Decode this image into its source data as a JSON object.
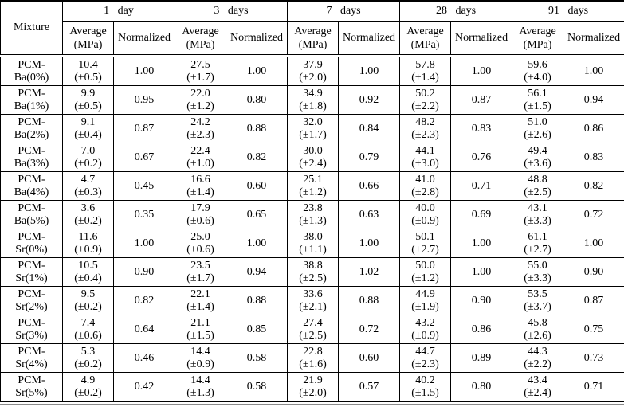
{
  "table": {
    "corner_header": "Mixture",
    "periods": [
      {
        "label": "1 day"
      },
      {
        "label": "3 days"
      },
      {
        "label": "7 days"
      },
      {
        "label": "28 days"
      },
      {
        "label": "91 days"
      }
    ],
    "sub_headers": {
      "average_line1": "Average",
      "average_line2": "(MPa)",
      "normalized": "Normalized"
    },
    "border_color": "#000000",
    "background_color": "#ffffff"
  },
  "rows": [
    {
      "mixture_line1": "PCM-",
      "mixture_line2": "Ba(0%)",
      "periods": [
        {
          "avg": "10.4",
          "err": "(±0.5)",
          "norm": "1.00"
        },
        {
          "avg": "27.5",
          "err": "(±1.7)",
          "norm": "1.00"
        },
        {
          "avg": "37.9",
          "err": "(±2.0)",
          "norm": "1.00"
        },
        {
          "avg": "57.8",
          "err": "(±1.4)",
          "norm": "1.00"
        },
        {
          "avg": "59.6",
          "err": "(±4.0)",
          "norm": "1.00"
        }
      ]
    },
    {
      "mixture_line1": "PCM-",
      "mixture_line2": "Ba(1%)",
      "periods": [
        {
          "avg": "9.9",
          "err": "(±0.5)",
          "norm": "0.95"
        },
        {
          "avg": "22.0",
          "err": "(±1.2)",
          "norm": "0.80"
        },
        {
          "avg": "34.9",
          "err": "(±1.8)",
          "norm": "0.92"
        },
        {
          "avg": "50.2",
          "err": "(±2.2)",
          "norm": "0.87"
        },
        {
          "avg": "56.1",
          "err": "(±1.5)",
          "norm": "0.94"
        }
      ]
    },
    {
      "mixture_line1": "PCM-",
      "mixture_line2": "Ba(2%)",
      "periods": [
        {
          "avg": "9.1",
          "err": "(±0.4)",
          "norm": "0.87"
        },
        {
          "avg": "24.2",
          "err": "(±2.3)",
          "norm": "0.88"
        },
        {
          "avg": "32.0",
          "err": "(±1.7)",
          "norm": "0.84"
        },
        {
          "avg": "48.2",
          "err": "(±2.3)",
          "norm": "0.83"
        },
        {
          "avg": "51.0",
          "err": "(±2.6)",
          "norm": "0.86"
        }
      ]
    },
    {
      "mixture_line1": "PCM-",
      "mixture_line2": "Ba(3%)",
      "periods": [
        {
          "avg": "7.0",
          "err": "(±0.2)",
          "norm": "0.67"
        },
        {
          "avg": "22.4",
          "err": "(±1.0)",
          "norm": "0.82"
        },
        {
          "avg": "30.0",
          "err": "(±2.4)",
          "norm": "0.79"
        },
        {
          "avg": "44.1",
          "err": "(±3.0)",
          "norm": "0.76"
        },
        {
          "avg": "49.4",
          "err": "(±3.6)",
          "norm": "0.83"
        }
      ]
    },
    {
      "mixture_line1": "PCM-",
      "mixture_line2": "Ba(4%)",
      "periods": [
        {
          "avg": "4.7",
          "err": "(±0.3)",
          "norm": "0.45"
        },
        {
          "avg": "16.6",
          "err": "(±1.4)",
          "norm": "0.60"
        },
        {
          "avg": "25.1",
          "err": "(±1.2)",
          "norm": "0.66"
        },
        {
          "avg": "41.0",
          "err": "(±2.8)",
          "norm": "0.71"
        },
        {
          "avg": "48.8",
          "err": "(±2.5)",
          "norm": "0.82"
        }
      ]
    },
    {
      "mixture_line1": "PCM-",
      "mixture_line2": "Ba(5%)",
      "periods": [
        {
          "avg": "3.6",
          "err": "(±0.2)",
          "norm": "0.35"
        },
        {
          "avg": "17.9",
          "err": "(±0.6)",
          "norm": "0.65"
        },
        {
          "avg": "23.8",
          "err": "(±1.3)",
          "norm": "0.63"
        },
        {
          "avg": "40.0",
          "err": "(±0.9)",
          "norm": "0.69"
        },
        {
          "avg": "43.1",
          "err": "(±3.3)",
          "norm": "0.72"
        }
      ]
    },
    {
      "mixture_line1": "PCM-",
      "mixture_line2": "Sr(0%)",
      "periods": [
        {
          "avg": "11.6",
          "err": "(±0.9)",
          "norm": "1.00"
        },
        {
          "avg": "25.0",
          "err": "(±0.6)",
          "norm": "1.00"
        },
        {
          "avg": "38.0",
          "err": "(±1.1)",
          "norm": "1.00"
        },
        {
          "avg": "50.1",
          "err": "(±2.7)",
          "norm": "1.00"
        },
        {
          "avg": "61.1",
          "err": "(±2.7)",
          "norm": "1.00"
        }
      ]
    },
    {
      "mixture_line1": "PCM-",
      "mixture_line2": "Sr(1%)",
      "periods": [
        {
          "avg": "10.5",
          "err": "(±0.4)",
          "norm": "0.90"
        },
        {
          "avg": "23.5",
          "err": "(±1.7)",
          "norm": "0.94"
        },
        {
          "avg": "38.8",
          "err": "(±2.5)",
          "norm": "1.02"
        },
        {
          "avg": "50.0",
          "err": "(±1.2)",
          "norm": "1.00"
        },
        {
          "avg": "55.0",
          "err": "(±3.3)",
          "norm": "0.90"
        }
      ]
    },
    {
      "mixture_line1": "PCM-",
      "mixture_line2": "Sr(2%)",
      "periods": [
        {
          "avg": "9.5",
          "err": "(±0.2)",
          "norm": "0.82"
        },
        {
          "avg": "22.1",
          "err": "(±1.4)",
          "norm": "0.88"
        },
        {
          "avg": "33.6",
          "err": "(±2.1)",
          "norm": "0.88"
        },
        {
          "avg": "44.9",
          "err": "(±1.9)",
          "norm": "0.90"
        },
        {
          "avg": "53.5",
          "err": "(±3.7)",
          "norm": "0.87"
        }
      ]
    },
    {
      "mixture_line1": "PCM-",
      "mixture_line2": "Sr(3%)",
      "periods": [
        {
          "avg": "7.4",
          "err": "(±0.6)",
          "norm": "0.64"
        },
        {
          "avg": "21.1",
          "err": "(±1.5)",
          "norm": "0.85"
        },
        {
          "avg": "27.4",
          "err": "(±2.5)",
          "norm": "0.72"
        },
        {
          "avg": "43.2",
          "err": "(±0.9)",
          "norm": "0.86"
        },
        {
          "avg": "45.8",
          "err": "(±2.6)",
          "norm": "0.75"
        }
      ]
    },
    {
      "mixture_line1": "PCM-",
      "mixture_line2": "Sr(4%)",
      "periods": [
        {
          "avg": "5.3",
          "err": "(±0.2)",
          "norm": "0.46"
        },
        {
          "avg": "14.4",
          "err": "(±0.9)",
          "norm": "0.58"
        },
        {
          "avg": "22.8",
          "err": "(±1.6)",
          "norm": "0.60"
        },
        {
          "avg": "44.7",
          "err": "(±2.3)",
          "norm": "0.89"
        },
        {
          "avg": "44.3",
          "err": "(±2.2)",
          "norm": "0.73"
        }
      ]
    },
    {
      "mixture_line1": "PCM-",
      "mixture_line2": "Sr(5%)",
      "periods": [
        {
          "avg": "4.9",
          "err": "(±0.2)",
          "norm": "0.42"
        },
        {
          "avg": "14.4",
          "err": "(±1.3)",
          "norm": "0.58"
        },
        {
          "avg": "21.9",
          "err": "(±2.0)",
          "norm": "0.57"
        },
        {
          "avg": "40.2",
          "err": "(±1.5)",
          "norm": "0.80"
        },
        {
          "avg": "43.4",
          "err": "(±2.4)",
          "norm": "0.71"
        }
      ]
    }
  ]
}
